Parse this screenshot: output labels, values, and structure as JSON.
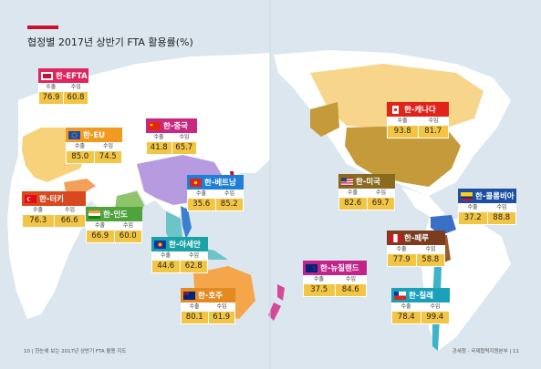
{
  "title": "협정별 2017년 상반기 FTA 활용률(%)",
  "colors": {
    "sea": "#dbe6ee",
    "land": "#ffffff",
    "accent": "#c8102e"
  },
  "col_labels": {
    "export": "수출",
    "import": "수입"
  },
  "ftas": [
    {
      "name": "한-EFTA",
      "export": "76.9",
      "import": "60.8",
      "header_color": "#e0245e",
      "flag": "efta-logo"
    },
    {
      "name": "한-EU",
      "export": "85.0",
      "import": "74.5",
      "header_color": "#f29a1f",
      "flag": "eu-flag"
    },
    {
      "name": "한-중국",
      "export": "41.8",
      "import": "65.7",
      "header_color": "#c8287f",
      "flag": "china-flag"
    },
    {
      "name": "한-베트남",
      "export": "35.6",
      "import": "85.2",
      "header_color": "#1f7fd6",
      "flag": "vietnam-flag"
    },
    {
      "name": "한-터키",
      "export": "76.3",
      "import": "66.6",
      "header_color": "#d9481f",
      "flag": "turkey-flag"
    },
    {
      "name": "한-인도",
      "export": "66.9",
      "import": "60.0",
      "header_color": "#4fa33c",
      "flag": "india-flag"
    },
    {
      "name": "한-아세안",
      "export": "44.6",
      "import": "62.8",
      "header_color": "#1aa2a6",
      "flag": "asean-flag"
    },
    {
      "name": "한-호주",
      "export": "80.1",
      "import": "61.9",
      "header_color": "#e58a20",
      "flag": "australia-flag"
    },
    {
      "name": "한-캐나다",
      "export": "93.8",
      "import": "81.7",
      "header_color": "#e2231a",
      "flag": "canada-flag"
    },
    {
      "name": "한-미국",
      "export": "82.6",
      "import": "69.7",
      "header_color": "#8a6a1e",
      "flag": "usa-flag"
    },
    {
      "name": "한-콜롬비아",
      "export": "37.2",
      "import": "88.8",
      "header_color": "#1c4fa1",
      "flag": "colombia-flag"
    },
    {
      "name": "한-페루",
      "export": "77.9",
      "import": "58.8",
      "header_color": "#7a3d1f",
      "flag": "peru-flag"
    },
    {
      "name": "한-뉴질랜드",
      "export": "37.5",
      "import": "84.6",
      "header_color": "#c2248a",
      "flag": "newzealand-flag"
    },
    {
      "name": "한-칠레",
      "export": "78.4",
      "import": "99.4",
      "header_color": "#1aa0b8",
      "flag": "chile-flag"
    }
  ],
  "footer": {
    "left": "10 | 한눈에 보는 2017년 상반기 FTA 활용 지도",
    "right": "관세청 · 국제협력지원본부 | 11"
  }
}
